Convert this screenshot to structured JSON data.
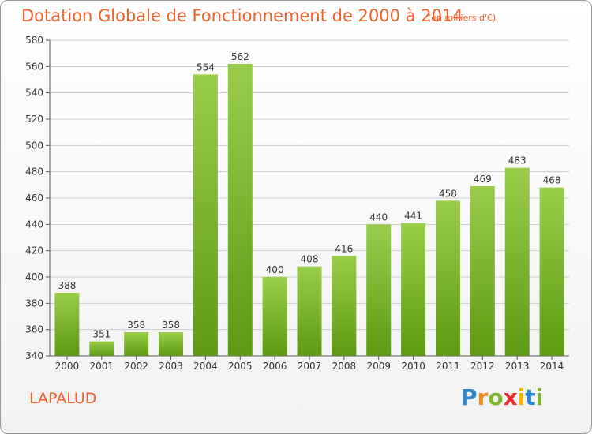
{
  "chart_data": {
    "type": "bar",
    "title": "Dotation Globale de Fonctionnement de 2000 à 2014",
    "subtitle": "(en milliers d'€)",
    "xlabel": "",
    "ylabel": "",
    "categories": [
      "2000",
      "2001",
      "2002",
      "2003",
      "2004",
      "2005",
      "2006",
      "2007",
      "2008",
      "2009",
      "2010",
      "2011",
      "2012",
      "2013",
      "2014"
    ],
    "values": [
      388,
      351,
      358,
      358,
      554,
      562,
      400,
      408,
      416,
      440,
      441,
      458,
      469,
      483,
      468
    ],
    "ylim": [
      340,
      580
    ],
    "yticks": [
      340,
      360,
      380,
      400,
      420,
      440,
      460,
      480,
      500,
      520,
      540,
      560,
      580
    ],
    "grid": true,
    "legend": "none",
    "bar_color_top": "#9acd4a",
    "bar_color_bottom": "#5e9a12"
  },
  "footer": {
    "commune": "LAPALUD",
    "logo": [
      {
        "ch": "P",
        "color": "#2e86c8"
      },
      {
        "ch": "r",
        "color": "#f28a1d"
      },
      {
        "ch": "o",
        "color": "#7cb82f"
      },
      {
        "ch": "x",
        "color": "#e8312a"
      },
      {
        "ch": "i",
        "color": "#f2b400"
      },
      {
        "ch": "t",
        "color": "#2e86c8"
      },
      {
        "ch": "i",
        "color": "#7cb82f"
      }
    ]
  },
  "colors": {
    "accent": "#f0602a",
    "grid": "#cccccc",
    "axis": "#555555"
  }
}
